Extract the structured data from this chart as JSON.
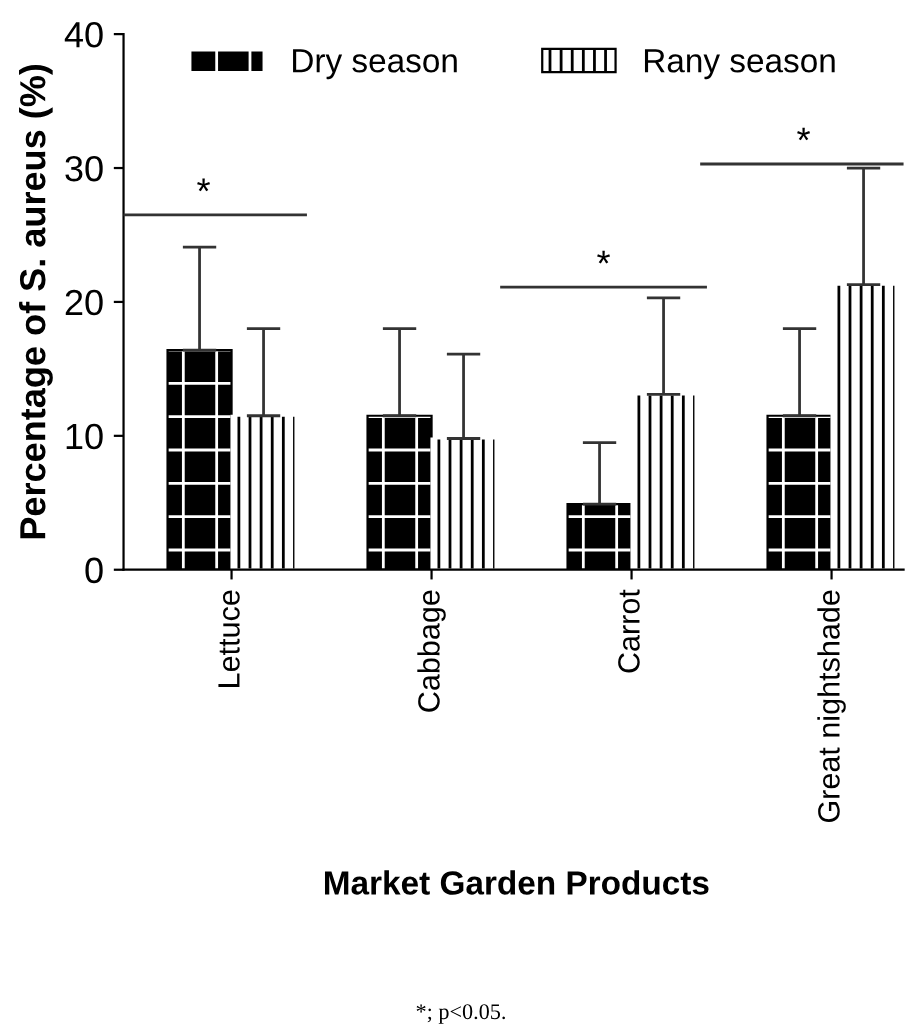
{
  "chart_data": {
    "type": "bar",
    "categories": [
      "Lettuce",
      "Cabbage",
      "Carrot",
      "Great nightshade"
    ],
    "xlabel": "Market Garden Products",
    "ylabel": "Percentage of S. aureus (%)",
    "series": [
      {
        "name": "Dry season",
        "color": "#000000",
        "values": [
          16.4,
          11.5,
          4.9,
          11.5
        ],
        "errors": [
          [
            16.4,
            24.1
          ],
          [
            11.5,
            18.0
          ],
          [
            4.9,
            9.5
          ],
          [
            11.5,
            18.0
          ]
        ]
      },
      {
        "name": "Rany season",
        "color": "#ffffff",
        "values": [
          11.5,
          9.8,
          13.1,
          21.3
        ],
        "errors": [
          [
            11.5,
            18.0
          ],
          [
            9.8,
            16.1
          ],
          [
            13.1,
            20.3
          ],
          [
            21.3,
            30.0
          ]
        ]
      }
    ],
    "ylim": [
      0,
      40
    ],
    "yticks": [
      0,
      10,
      20,
      30,
      40
    ],
    "grid": false,
    "legend": "top",
    "annotations": [
      "*",
      "*",
      "*",
      "*; p<0.05."
    ]
  }
}
